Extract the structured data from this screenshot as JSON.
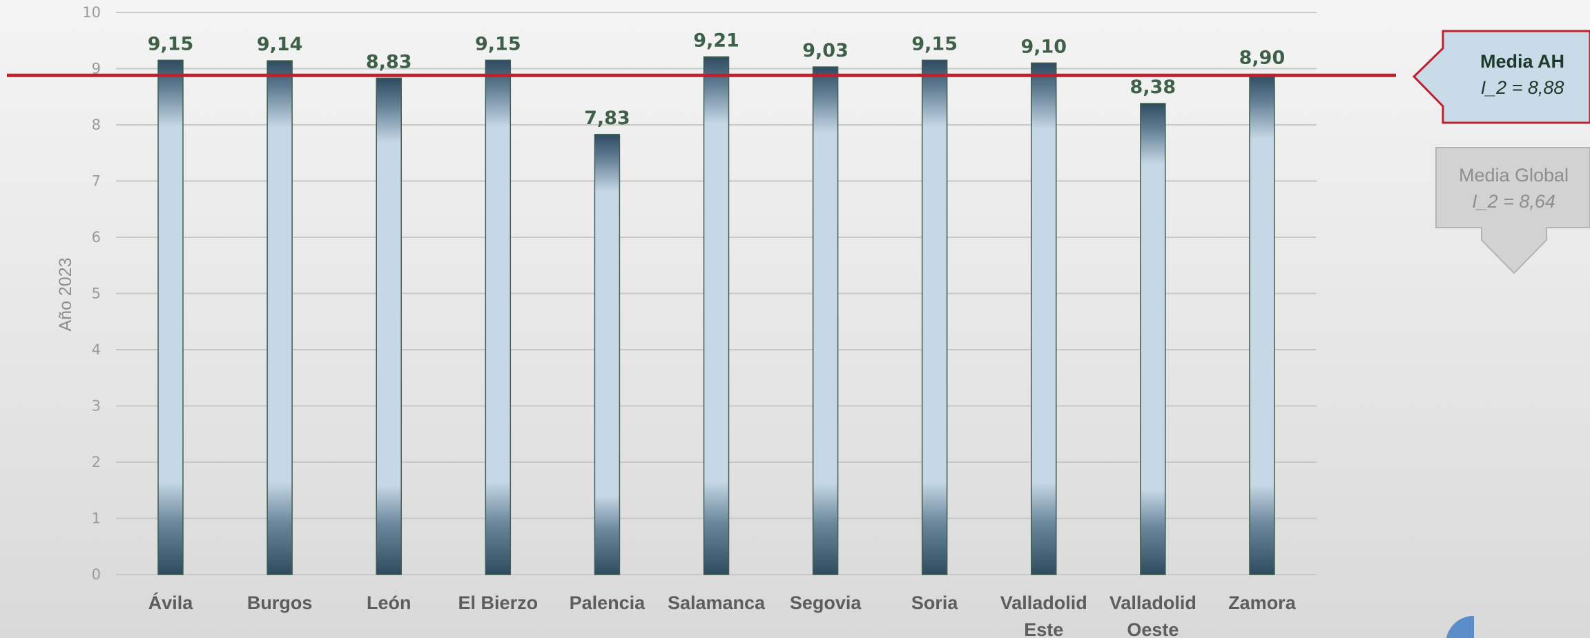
{
  "chart_data": {
    "type": "bar",
    "categories": [
      "Ávila",
      "Burgos",
      "León",
      "El Bierzo",
      "Palencia",
      "Salamanca",
      "Segovia",
      "Soria",
      "Valladolid Este",
      "Valladolid Oeste",
      "Zamora"
    ],
    "category_lines": [
      [
        "Ávila"
      ],
      [
        "Burgos"
      ],
      [
        "León"
      ],
      [
        "El Bierzo"
      ],
      [
        "Palencia"
      ],
      [
        "Salamanca"
      ],
      [
        "Segovia"
      ],
      [
        "Soria"
      ],
      [
        "Valladolid",
        "Este"
      ],
      [
        "Valladolid",
        "Oeste"
      ],
      [
        "Zamora"
      ]
    ],
    "values": [
      9.15,
      9.14,
      8.83,
      9.15,
      7.83,
      9.21,
      9.03,
      9.15,
      9.1,
      8.38,
      8.9
    ],
    "value_labels": [
      "9,15",
      "9,14",
      "8,83",
      "9,15",
      "7,83",
      "9,21",
      "9,03",
      "9,15",
      "9,10",
      "8,38",
      "8,90"
    ],
    "ylabel": "Año 2023",
    "ylim": [
      0,
      10
    ],
    "yticks": [
      0,
      1,
      2,
      3,
      4,
      5,
      6,
      7,
      8,
      9,
      10
    ],
    "grid": true,
    "reference_lines": [
      {
        "title": "Media AH",
        "label": "I_2 = 8,88",
        "value": 8.88,
        "color": "#c0202c"
      },
      {
        "title": "Media Global",
        "label": "I_2 = 8,64",
        "value": 8.64,
        "color": "#a6a6a6"
      }
    ]
  }
}
